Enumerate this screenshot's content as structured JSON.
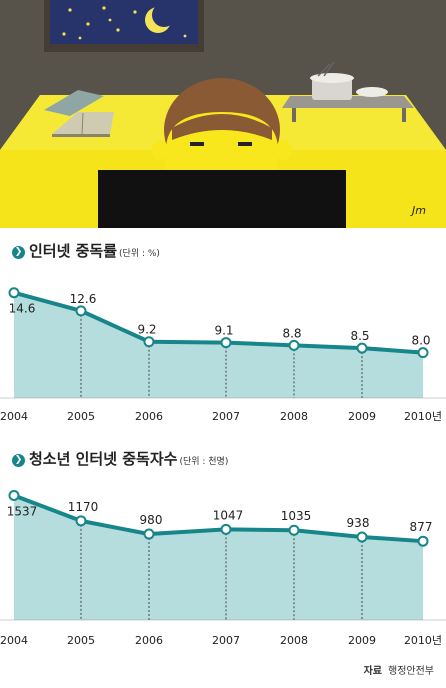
{
  "illustration": {
    "description_icons": [
      "night-window-icon",
      "crescent-moon-icon",
      "open-book-icon",
      "cooking-pot-icon",
      "person-head-icon",
      "computer-monitor-icon"
    ],
    "signature": "Jm",
    "colors": {
      "wall": "#57524a",
      "floor": "#f5e41a",
      "sky": "#27346b",
      "skin": "#f8e71c",
      "hair": "#8a5a35",
      "monitor": "#111111"
    }
  },
  "colors": {
    "accent": "#17868a",
    "fill": "#b6dddd",
    "bullet": "#17868a"
  },
  "chart_data": [
    {
      "type": "area",
      "title": "인터넷 중독률",
      "unit": "(단위 : %)",
      "categories": [
        "2004",
        "2005",
        "2006",
        "2007",
        "2008",
        "2009",
        "2010년"
      ],
      "values": [
        14.6,
        12.6,
        9.2,
        9.1,
        8.8,
        8.5,
        8.0
      ],
      "value_labels": [
        "14.6",
        "12.6",
        "9.2",
        "9.1",
        "8.8",
        "8.5",
        "8.0"
      ],
      "ylim": [
        3,
        16
      ],
      "grid": "dashed vertical drop lines"
    },
    {
      "type": "area",
      "title": "청소년 인터넷 중독자수",
      "unit": "(단위 : 천명)",
      "categories": [
        "2004",
        "2005",
        "2006",
        "2007",
        "2008",
        "2009",
        "2010년"
      ],
      "values": [
        1537,
        1170,
        980,
        1047,
        1035,
        938,
        877
      ],
      "value_labels": [
        "1537",
        "1170",
        "980",
        "1047",
        "1035",
        "938",
        "877"
      ],
      "ylim": [
        -260,
        1630
      ],
      "grid": "dashed vertical drop lines"
    }
  ],
  "source": {
    "label": "자료",
    "text": "행정안전부"
  }
}
